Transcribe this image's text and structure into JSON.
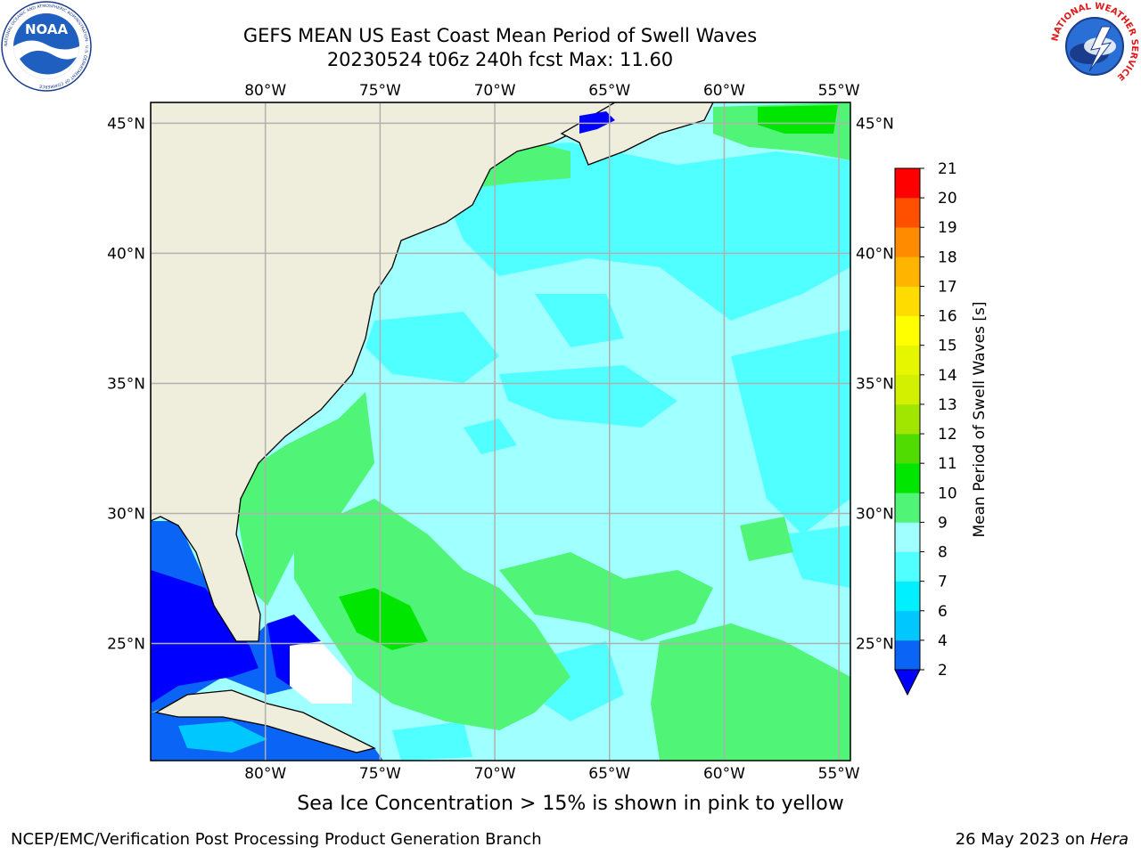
{
  "title": {
    "line1": "GEFS MEAN US East Coast Mean Period of Swell Waves",
    "line2": "20230524 t06z 240h fcst   Max: 11.60"
  },
  "logos": {
    "left": {
      "name": "noaa-logo",
      "text": "NOAA",
      "ring_text": "NATIONAL OCEANIC AND ATMOSPHERIC ADMINISTRATION · U.S. DEPARTMENT OF COMMERCE"
    },
    "right": {
      "name": "nws-logo",
      "ring_text": "NATIONAL WEATHER SERVICE"
    }
  },
  "map": {
    "projection": "equirectangular",
    "lon_range": [
      -85,
      -54.5
    ],
    "lat_range": [
      20.5,
      45.8
    ],
    "lon_ticks": [
      {
        "value": -80,
        "label": "80°W"
      },
      {
        "value": -75,
        "label": "75°W"
      },
      {
        "value": -70,
        "label": "70°W"
      },
      {
        "value": -65,
        "label": "65°W"
      },
      {
        "value": -60,
        "label": "60°W"
      },
      {
        "value": -55,
        "label": "55°W"
      }
    ],
    "lat_ticks": [
      {
        "value": 45,
        "label": "45°N"
      },
      {
        "value": 40,
        "label": "40°N"
      },
      {
        "value": 35,
        "label": "35°N"
      },
      {
        "value": 30,
        "label": "30°N"
      },
      {
        "value": 25,
        "label": "25°N"
      }
    ],
    "grid": true,
    "colors": {
      "land": "#efeedc",
      "grid": "#b0b0b0",
      "coast": "#000000",
      "frame": "#000000"
    }
  },
  "colorbar": {
    "label": "Mean Period of Swell Waves [s]",
    "levels": [
      2,
      4,
      6,
      7,
      8,
      9,
      10,
      11,
      12,
      13,
      14,
      15,
      16,
      17,
      18,
      19,
      20,
      21
    ],
    "tick_labels": [
      "2",
      "4",
      "6",
      "7",
      "8",
      "9",
      "10",
      "11",
      "12",
      "13",
      "14",
      "15",
      "16",
      "17",
      "18",
      "19",
      "20",
      "21"
    ],
    "colors": [
      "#0a64f5",
      "#00c8ff",
      "#00f0ff",
      "#50ffff",
      "#a0ffff",
      "#50f578",
      "#00e600",
      "#50dc00",
      "#a0e600",
      "#d2f000",
      "#e6f500",
      "#ffff00",
      "#ffdc00",
      "#ffb400",
      "#ff8c00",
      "#ff5000",
      "#ff0000"
    ],
    "under_color": "#0000ff",
    "extend": "min"
  },
  "field_data": {
    "type": "filled-contour",
    "variable": "Mean Period of Swell Waves",
    "units": "s",
    "max": 11.6,
    "regions": [
      {
        "name": "open-atlantic",
        "value_range": [
          8,
          9
        ]
      },
      {
        "name": "offshore-patches",
        "value_range": [
          7,
          8
        ]
      },
      {
        "name": "bahamas-southeast",
        "value_range": [
          9,
          10
        ]
      },
      {
        "name": "near-bahamas-core",
        "value_range": [
          10,
          11
        ]
      },
      {
        "name": "nova-scotia-east",
        "value_range": [
          9,
          11
        ]
      },
      {
        "name": "gulf-of-mexico",
        "value_range": [
          2,
          4
        ]
      },
      {
        "name": "caribbean-north",
        "value_range": [
          4,
          7
        ]
      }
    ]
  },
  "footer": {
    "ice_note": "Sea Ice Concentration > 15% is shown in pink to yellow",
    "left": "NCEP/EMC/Verification Post Processing Product Generation Branch",
    "right_date": "26 May 2023 on ",
    "right_host": "Hera"
  }
}
